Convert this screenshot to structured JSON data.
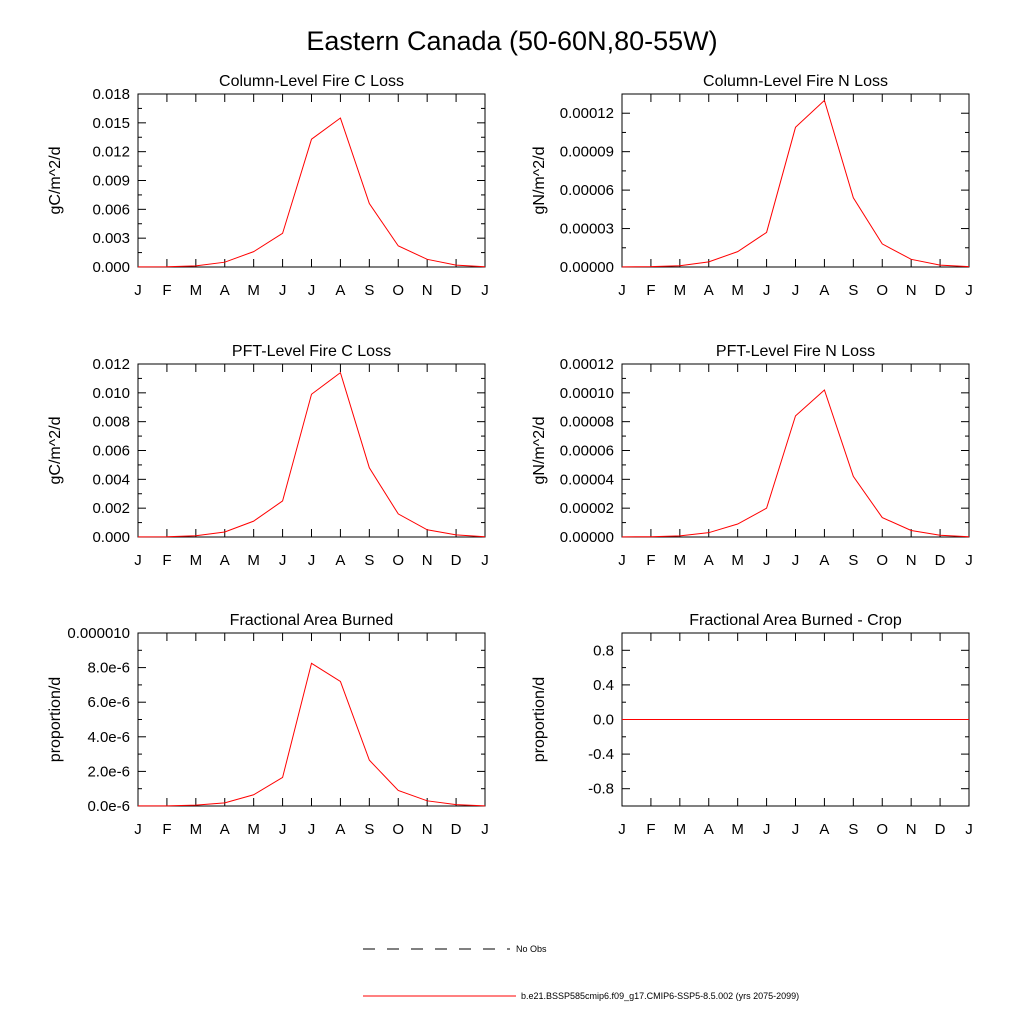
{
  "figure": {
    "title": "Eastern Canada (50-60N,80-55W)"
  },
  "colors": {
    "model_line": "#ff0000",
    "obs_line": "#000000"
  },
  "legend": {
    "placement": "bottom-center",
    "entries": [
      {
        "label": "No Obs",
        "style": "dashed",
        "color": "#000000"
      },
      {
        "label": "b.e21.BSSP585cmip6.f09_g17.CMIP6-SSP5-8.5.002 (yrs 2075-2099)",
        "style": "solid",
        "color": "#ff0000"
      }
    ]
  },
  "chart_data": [
    {
      "type": "line",
      "title": "Column-Level Fire C Loss",
      "ylabel": "gC/m^2/d",
      "x": [
        "J",
        "F",
        "M",
        "A",
        "M",
        "J",
        "J",
        "A",
        "S",
        "O",
        "N",
        "D",
        "J"
      ],
      "ylim": [
        0,
        0.018
      ],
      "yticks": [
        0,
        0.003,
        0.006,
        0.009,
        0.012,
        0.015,
        0.018
      ],
      "ytick_labels": [
        "0.000",
        "0.003",
        "0.006",
        "0.009",
        "0.012",
        "0.015",
        "0.018"
      ],
      "series": [
        {
          "values": [
            1e-05,
            3e-05,
            0.00012,
            0.0005,
            0.0016,
            0.0035,
            0.0133,
            0.0155,
            0.0066,
            0.0022,
            0.0008,
            0.0002,
            3e-05
          ]
        }
      ]
    },
    {
      "type": "line",
      "title": "Column-Level Fire N Loss",
      "ylabel": "gN/m^2/d",
      "x": [
        "J",
        "F",
        "M",
        "A",
        "M",
        "J",
        "J",
        "A",
        "S",
        "O",
        "N",
        "D",
        "J"
      ],
      "ylim": [
        0,
        0.000135
      ],
      "yticks": [
        0,
        3e-05,
        6e-05,
        9e-05,
        0.00012
      ],
      "ytick_labels": [
        "0.00000",
        "0.00003",
        "0.00006",
        "0.00009",
        "0.00012"
      ],
      "series": [
        {
          "values": [
            1e-07,
            3e-07,
            1e-06,
            4e-06,
            1.2e-05,
            2.7e-05,
            0.000109,
            0.00013,
            5.4e-05,
            1.8e-05,
            6e-06,
            1.5e-06,
            3e-07
          ]
        }
      ]
    },
    {
      "type": "line",
      "title": "PFT-Level Fire C Loss",
      "ylabel": "gC/m^2/d",
      "x": [
        "J",
        "F",
        "M",
        "A",
        "M",
        "J",
        "J",
        "A",
        "S",
        "O",
        "N",
        "D",
        "J"
      ],
      "ylim": [
        0,
        0.012
      ],
      "yticks": [
        0,
        0.002,
        0.004,
        0.006,
        0.008,
        0.01,
        0.012
      ],
      "ytick_labels": [
        "0.000",
        "0.002",
        "0.004",
        "0.006",
        "0.008",
        "0.010",
        "0.012"
      ],
      "series": [
        {
          "values": [
            1e-05,
            2e-05,
            9e-05,
            0.00035,
            0.0011,
            0.0025,
            0.0099,
            0.0114,
            0.0048,
            0.0016,
            0.0005,
            0.00015,
            2e-05
          ]
        }
      ]
    },
    {
      "type": "line",
      "title": "PFT-Level Fire N Loss",
      "ylabel": "gN/m^2/d",
      "x": [
        "J",
        "F",
        "M",
        "A",
        "M",
        "J",
        "J",
        "A",
        "S",
        "O",
        "N",
        "D",
        "J"
      ],
      "ylim": [
        0,
        0.00012
      ],
      "yticks": [
        0,
        2e-05,
        4e-05,
        6e-05,
        8e-05,
        0.0001,
        0.00012
      ],
      "ytick_labels": [
        "0.00000",
        "0.00002",
        "0.00004",
        "0.00006",
        "0.00008",
        "0.00010",
        "0.00012"
      ],
      "series": [
        {
          "values": [
            1e-07,
            2e-07,
            8e-07,
            3e-06,
            9e-06,
            2e-05,
            8.4e-05,
            0.000102,
            4.2e-05,
            1.35e-05,
            4.5e-06,
            1.2e-06,
            2e-07
          ]
        }
      ]
    },
    {
      "type": "line",
      "title": "Fractional Area Burned",
      "ylabel": "proportion/d",
      "x": [
        "J",
        "F",
        "M",
        "A",
        "M",
        "J",
        "J",
        "A",
        "S",
        "O",
        "N",
        "D",
        "J"
      ],
      "ylim": [
        0,
        1e-05
      ],
      "yticks": [
        0,
        2e-06,
        4e-06,
        6e-06,
        8e-06,
        1e-05
      ],
      "ytick_labels": [
        "0.0e-6",
        "2.0e-6",
        "4.0e-6",
        "6.0e-6",
        "8.0e-6",
        "0.000010"
      ],
      "series": [
        {
          "values": [
            5e-09,
            1e-08,
            5e-08,
            1.8e-07,
            6.5e-07,
            1.65e-06,
            8.25e-06,
            7.2e-06,
            2.65e-06,
            9e-07,
            3e-07,
            8e-08,
            1e-08
          ]
        }
      ]
    },
    {
      "type": "line",
      "title": "Fractional Area Burned - Crop",
      "ylabel": "proportion/d",
      "x": [
        "J",
        "F",
        "M",
        "A",
        "M",
        "J",
        "J",
        "A",
        "S",
        "O",
        "N",
        "D",
        "J"
      ],
      "ylim": [
        -1.0,
        1.0
      ],
      "yticks": [
        -0.8,
        -0.4,
        0.0,
        0.4,
        0.8
      ],
      "ytick_labels": [
        "-0.8",
        "-0.4",
        "0.0",
        "0.4",
        "0.8"
      ],
      "series": [
        {
          "values": [
            0,
            0,
            0,
            0,
            0,
            0,
            0,
            0,
            0,
            0,
            0,
            0,
            0
          ]
        }
      ]
    }
  ]
}
